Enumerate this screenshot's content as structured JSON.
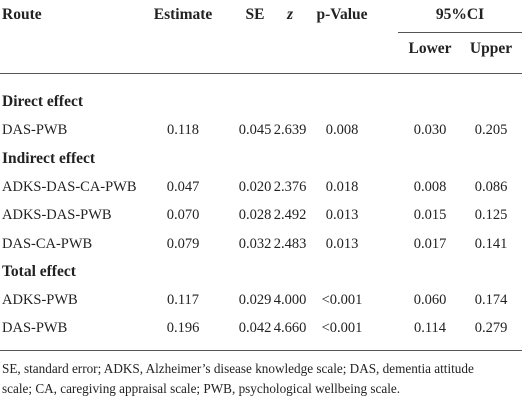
{
  "header": {
    "columns": [
      "Route",
      "Estimate",
      "SE",
      "z",
      "p-Value",
      "95%CI"
    ],
    "ci_columns": [
      "Lower",
      "Upper"
    ]
  },
  "sections": [
    {
      "title": "Direct effect",
      "rows": [
        [
          "DAS-PWB",
          "0.118",
          "0.045",
          "2.639",
          "0.008",
          "0.030",
          "0.205"
        ]
      ]
    },
    {
      "title": "Indirect effect",
      "rows": [
        [
          "ADKS-DAS-CA-PWB",
          "0.047",
          "0.020",
          "2.376",
          "0.018",
          "0.008",
          "0.086"
        ],
        [
          "ADKS-DAS-PWB",
          "0.070",
          "0.028",
          "2.492",
          "0.013",
          "0.015",
          "0.125"
        ],
        [
          "DAS-CA-PWB",
          "0.079",
          "0.032",
          "2.483",
          "0.013",
          "0.017",
          "0.141"
        ]
      ]
    },
    {
      "title": "Total effect",
      "rows": [
        [
          "ADKS-PWB",
          "0.117",
          "0.029",
          "4.000",
          "<0.001",
          "0.060",
          "0.174"
        ],
        [
          "DAS-PWB",
          "0.196",
          "0.042",
          "4.660",
          "<0.001",
          "0.114",
          "0.279"
        ]
      ]
    }
  ],
  "footnote": [
    "SE, standard error; ADKS, Alzheimer’s disease knowledge scale; DAS, dementia attitude",
    "scale; CA, caregiving appraisal scale; PWB, psychological wellbeing scale."
  ]
}
